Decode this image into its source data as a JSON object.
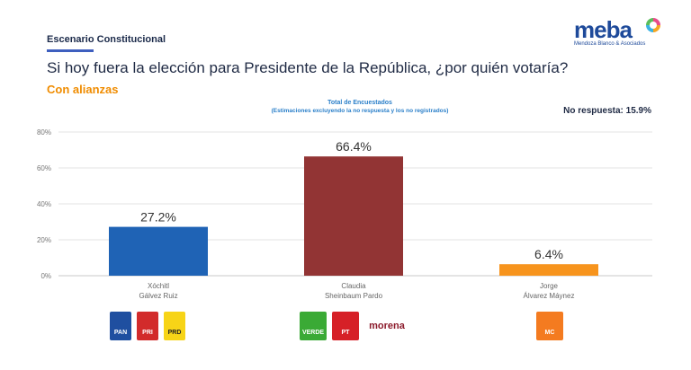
{
  "header": {
    "scenario": "Escenario Constitucional",
    "question": "Si hoy fuera la elección para Presidente de la República, ¿por quién votaría?",
    "subtitle": "Con alianzas",
    "brand": "meba",
    "brand_sub": "Mendoza Blanco & Asociados"
  },
  "chart_data": {
    "type": "bar",
    "title": "Total de Encuestados",
    "subtitle": "(Estimaciones excluyendo la no respuesta y los no registrados)",
    "annotation": "No respuesta: 15.9%",
    "categories": [
      "Xóchitl Gálvez Ruiz",
      "Claudia Sheinbaum Pardo",
      "Jorge Álvarez Máynez"
    ],
    "category_lines": [
      [
        "Xóchitl",
        "Gálvez Ruiz"
      ],
      [
        "Claudia",
        "Sheinbaum Pardo"
      ],
      [
        "Jorge",
        "Álvarez Máynez"
      ]
    ],
    "values": [
      27.2,
      66.4,
      6.4
    ],
    "value_labels": [
      "27.2%",
      "66.4%",
      "6.4%"
    ],
    "colors": [
      "#1f63b5",
      "#923434",
      "#f7941d"
    ],
    "ylim": [
      0,
      80
    ],
    "yticks": [
      0,
      20,
      40,
      60,
      80
    ],
    "ytick_labels": [
      "0%",
      "20%",
      "40%",
      "60%",
      "80%"
    ],
    "grid": true
  },
  "party_logos": [
    {
      "candidate": "Xóchitl Gálvez Ruiz",
      "logos": [
        {
          "label": "PAN",
          "color": "#1f4fa0",
          "icon": "pan-logo"
        },
        {
          "label": "PRI",
          "color": "#d22b2b",
          "icon": "pri-logo"
        },
        {
          "label": "PRD",
          "color": "#f7d417",
          "icon": "prd-logo"
        }
      ]
    },
    {
      "candidate": "Claudia Sheinbaum Pardo",
      "logos": [
        {
          "label": "VERDE",
          "color": "#3aaa35",
          "icon": "verde-logo"
        },
        {
          "label": "PT",
          "color": "#d62027",
          "icon": "pt-logo"
        },
        {
          "label": "morena",
          "color": "#8b1a2b",
          "icon": "morena-logo"
        }
      ]
    },
    {
      "candidate": "Jorge Álvarez Máynez",
      "logos": [
        {
          "label": "MC",
          "color": "#f47b20",
          "icon": "mc-logo"
        }
      ]
    }
  ]
}
